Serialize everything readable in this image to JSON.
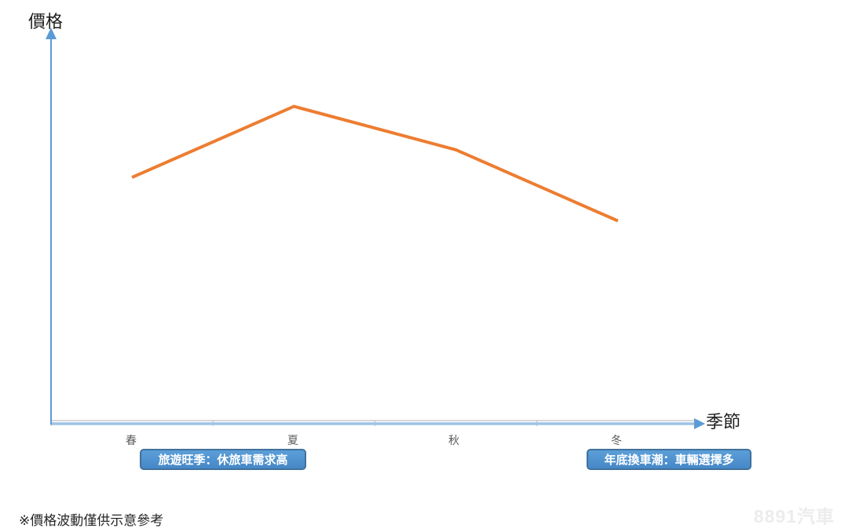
{
  "page": {
    "footnote": "※價格波動僅供示意參考",
    "watermark": "8891汽車",
    "background_color": "#FFFFFF"
  },
  "chart_data": {
    "type": "line",
    "title": "",
    "categories": [
      "春",
      "夏",
      "秋",
      "冬"
    ],
    "series": [
      {
        "name": "價格",
        "values": [
          62,
          80,
          69,
          51
        ]
      }
    ],
    "xlabel": "季節",
    "ylabel": "價格",
    "ylim": [
      0,
      100
    ],
    "grid": false,
    "legend": false,
    "numeric_tick_labels_shown": false,
    "line_color": "#ED7D31",
    "axis_arrow_color": "#5B9BD5",
    "axis_line_color": "#9DC3E6",
    "category_axis_color": "#BFBFBF",
    "annotations": [
      {
        "target": "春-夏",
        "label": "旅遊旺季：休旅車需求高",
        "fill": "#4E96D3",
        "border": "#41719C",
        "text_color": "#FFFFFF"
      },
      {
        "target": "冬",
        "label": "年底換車潮：車輛選擇多",
        "fill": "#4E96D3",
        "border": "#41719C",
        "text_color": "#FFFFFF"
      }
    ]
  }
}
